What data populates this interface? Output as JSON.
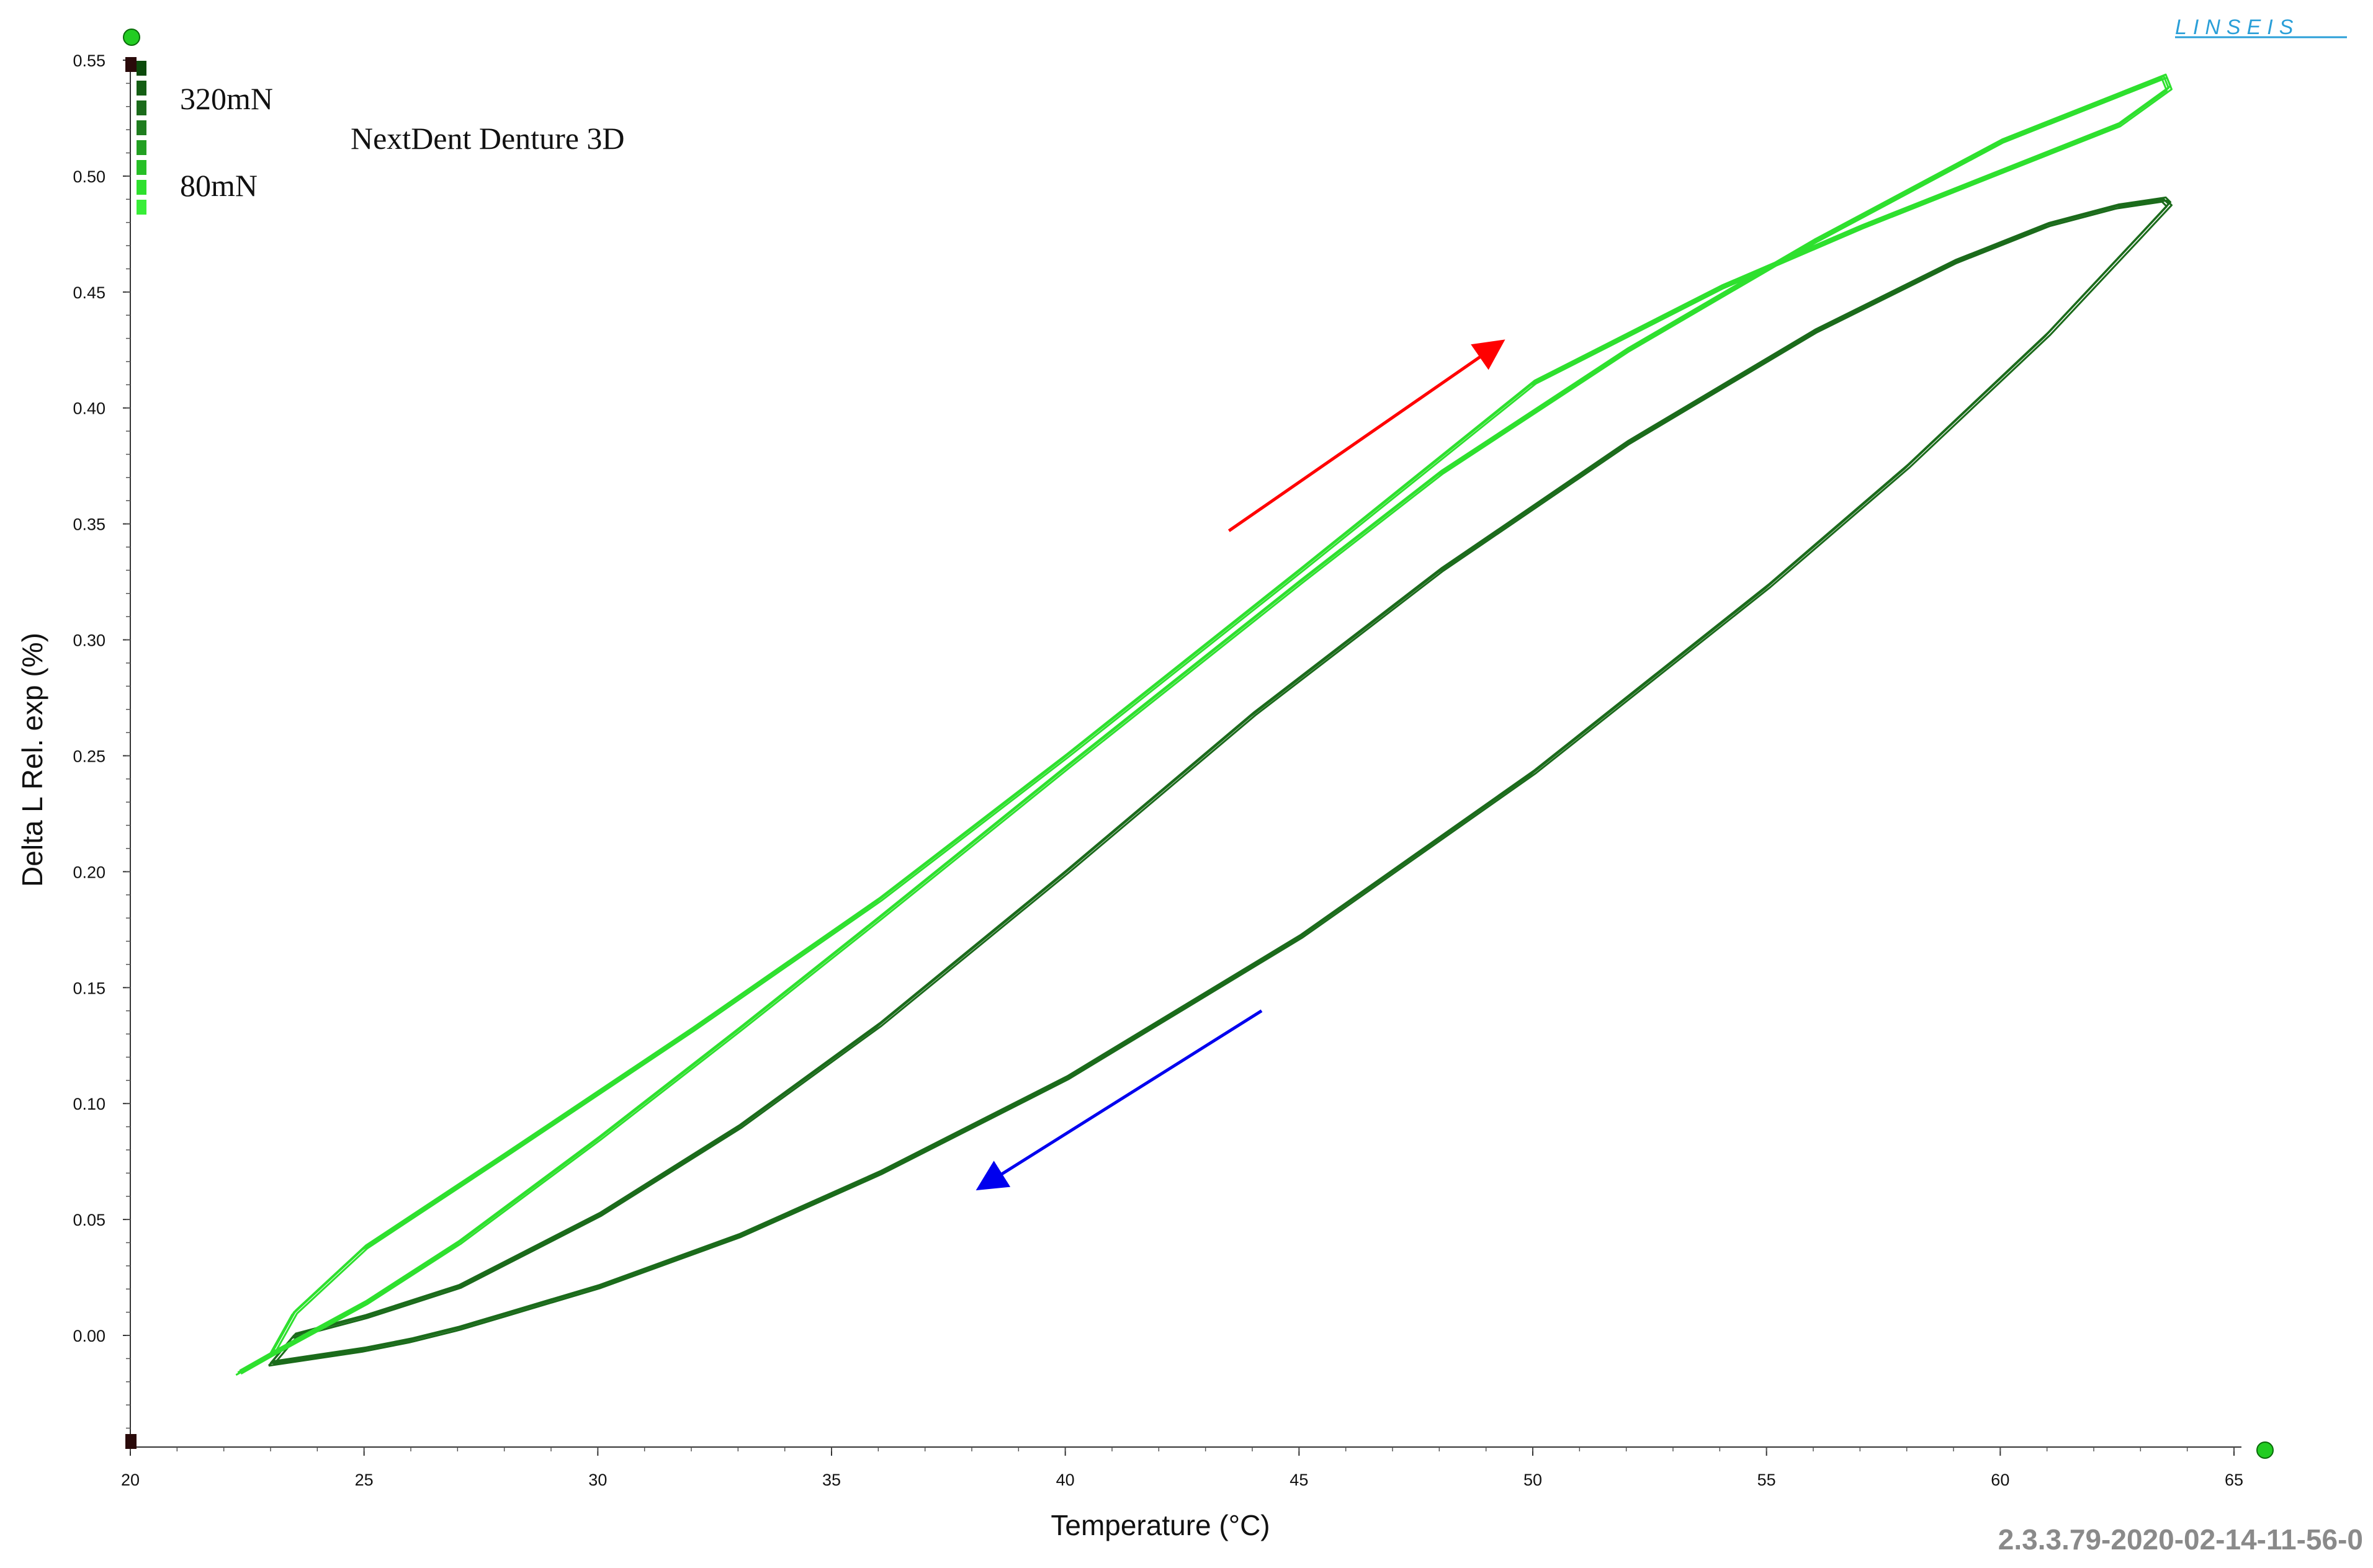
{
  "chart_data": {
    "type": "line",
    "title": "NextDent Denture 3D",
    "xlabel": "Temperature (°C)",
    "ylabel": "Delta L Rel. exp (%)",
    "xlim": [
      20,
      65
    ],
    "ylim": [
      -0.045,
      0.555
    ],
    "x_ticks": [
      20,
      25,
      30,
      35,
      40,
      45,
      50,
      55,
      60,
      65
    ],
    "y_ticks": [
      "0.00",
      "0.05",
      "0.10",
      "0.15",
      "0.20",
      "0.25",
      "0.30",
      "0.35",
      "0.40",
      "0.45",
      "0.50",
      "0.55"
    ],
    "grid": false,
    "legend": {
      "position": "top-left",
      "top_label": "320mN",
      "bottom_label": "80mN"
    },
    "colors": {
      "series_320": "#1b6b1b",
      "series_80": "#2ee02e",
      "heating_arrow": "#ff0000",
      "cooling_arrow": "#0000ee"
    },
    "series": [
      {
        "name": "320mN",
        "x": [
          23.0,
          24.0,
          25.0,
          26.0,
          27.0,
          28.0,
          30.0,
          33.0,
          36.0,
          40.0,
          45.0,
          50.0,
          55.0,
          58.0,
          61.0,
          63.0,
          63.6,
          63.5,
          62.5,
          61.0,
          59.0,
          56.0,
          52.0,
          48.0,
          44.0,
          40.0,
          36.0,
          33.0,
          30.0,
          27.0,
          25.0,
          23.5,
          23.0
        ],
        "y": [
          -0.012,
          -0.009,
          -0.006,
          -0.002,
          0.003,
          0.009,
          0.021,
          0.043,
          0.07,
          0.111,
          0.172,
          0.243,
          0.323,
          0.375,
          0.432,
          0.475,
          0.488,
          0.49,
          0.487,
          0.479,
          0.463,
          0.433,
          0.385,
          0.33,
          0.268,
          0.2,
          0.134,
          0.09,
          0.052,
          0.021,
          0.008,
          0.0,
          -0.012
        ]
      },
      {
        "name": "80mN",
        "x": [
          22.3,
          23.0,
          24.0,
          25.0,
          27.0,
          30.0,
          33.0,
          36.0,
          40.0,
          45.0,
          48.0,
          52.0,
          56.0,
          60.0,
          62.5,
          63.5,
          63.6,
          62.5,
          60.0,
          57.0,
          54.0,
          50.0,
          45.0,
          40.0,
          36.0,
          32.0,
          28.0,
          25.0,
          23.5,
          23.0
        ],
        "y": [
          -0.016,
          -0.008,
          0.003,
          0.014,
          0.04,
          0.085,
          0.132,
          0.18,
          0.245,
          0.325,
          0.372,
          0.425,
          0.472,
          0.515,
          0.535,
          0.543,
          0.538,
          0.522,
          0.502,
          0.478,
          0.452,
          0.411,
          0.33,
          0.25,
          0.188,
          0.132,
          0.078,
          0.038,
          0.01,
          -0.008
        ]
      }
    ],
    "annotations": [
      {
        "name": "heating",
        "from": [
          43.5,
          0.347
        ],
        "to": [
          49.3,
          0.428
        ]
      },
      {
        "name": "cooling",
        "from": [
          44.2,
          0.14
        ],
        "to": [
          38.2,
          0.064
        ]
      }
    ]
  },
  "brand": {
    "logo_text": "LINSEIS"
  },
  "footer": {
    "version": "2.3.3.79-2020-02-14-11-56-0"
  }
}
